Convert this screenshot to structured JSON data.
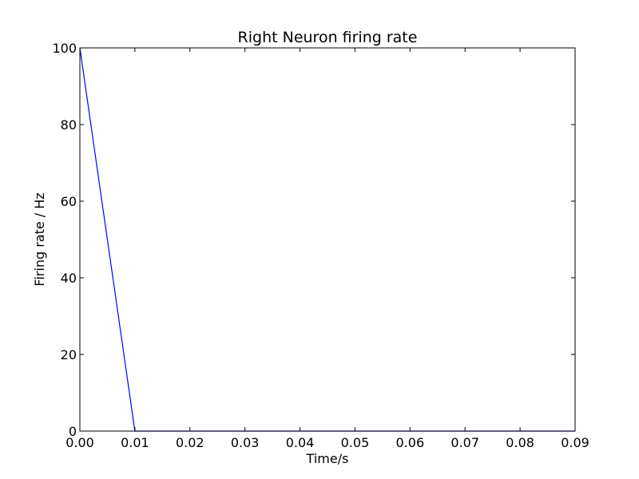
{
  "chart_data": {
    "type": "line",
    "title": "Right Neuron firing rate",
    "xlabel": "Time/s",
    "ylabel": "Firing rate / Hz",
    "xlim": [
      0.0,
      0.09
    ],
    "ylim": [
      0,
      100
    ],
    "xticks": [
      "0.00",
      "0.01",
      "0.02",
      "0.03",
      "0.04",
      "0.05",
      "0.06",
      "0.07",
      "0.08",
      "0.09"
    ],
    "yticks": [
      "0",
      "20",
      "40",
      "60",
      "80",
      "100"
    ],
    "grid": false,
    "series": [
      {
        "color": "#0000ff",
        "x": [
          0.0,
          0.01,
          0.02,
          0.03,
          0.04,
          0.05,
          0.06,
          0.07,
          0.08,
          0.09
        ],
        "y": [
          100,
          0,
          0,
          0,
          0,
          0,
          0,
          0,
          0,
          0
        ]
      }
    ]
  }
}
